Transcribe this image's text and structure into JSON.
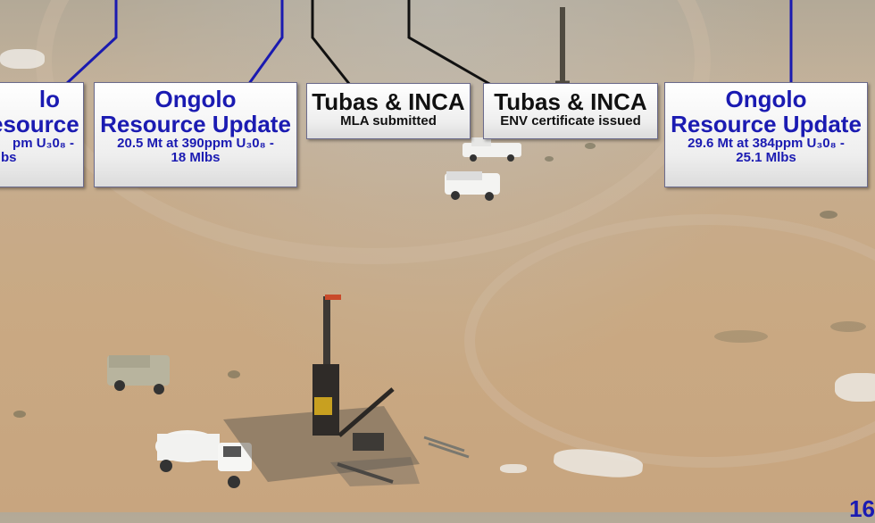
{
  "callouts": [
    {
      "title1": "lo",
      "title2": "esource",
      "detail1": "pm U₃0₈ -",
      "detail2": "bs"
    },
    {
      "title1": "Ongolo",
      "title2": "Resource Update",
      "detail1": "20.5 Mt at 390ppm U₃0₈ -",
      "detail2": "18 Mlbs"
    },
    {
      "title1": "Tubas & INCA",
      "detail1": "MLA submitted"
    },
    {
      "title1": "Tubas & INCA",
      "detail1": "ENV certificate issued"
    },
    {
      "title1": "Ongolo",
      "title2": "Resource Update",
      "detail1": "29.6 Mt at 384ppm U₃0₈ -",
      "detail2": "25.1 Mlbs"
    }
  ],
  "page_number": "16",
  "colors": {
    "accent": "#1b1bb2",
    "connector_blue": "#1a1ab0",
    "connector_black": "#111111"
  }
}
